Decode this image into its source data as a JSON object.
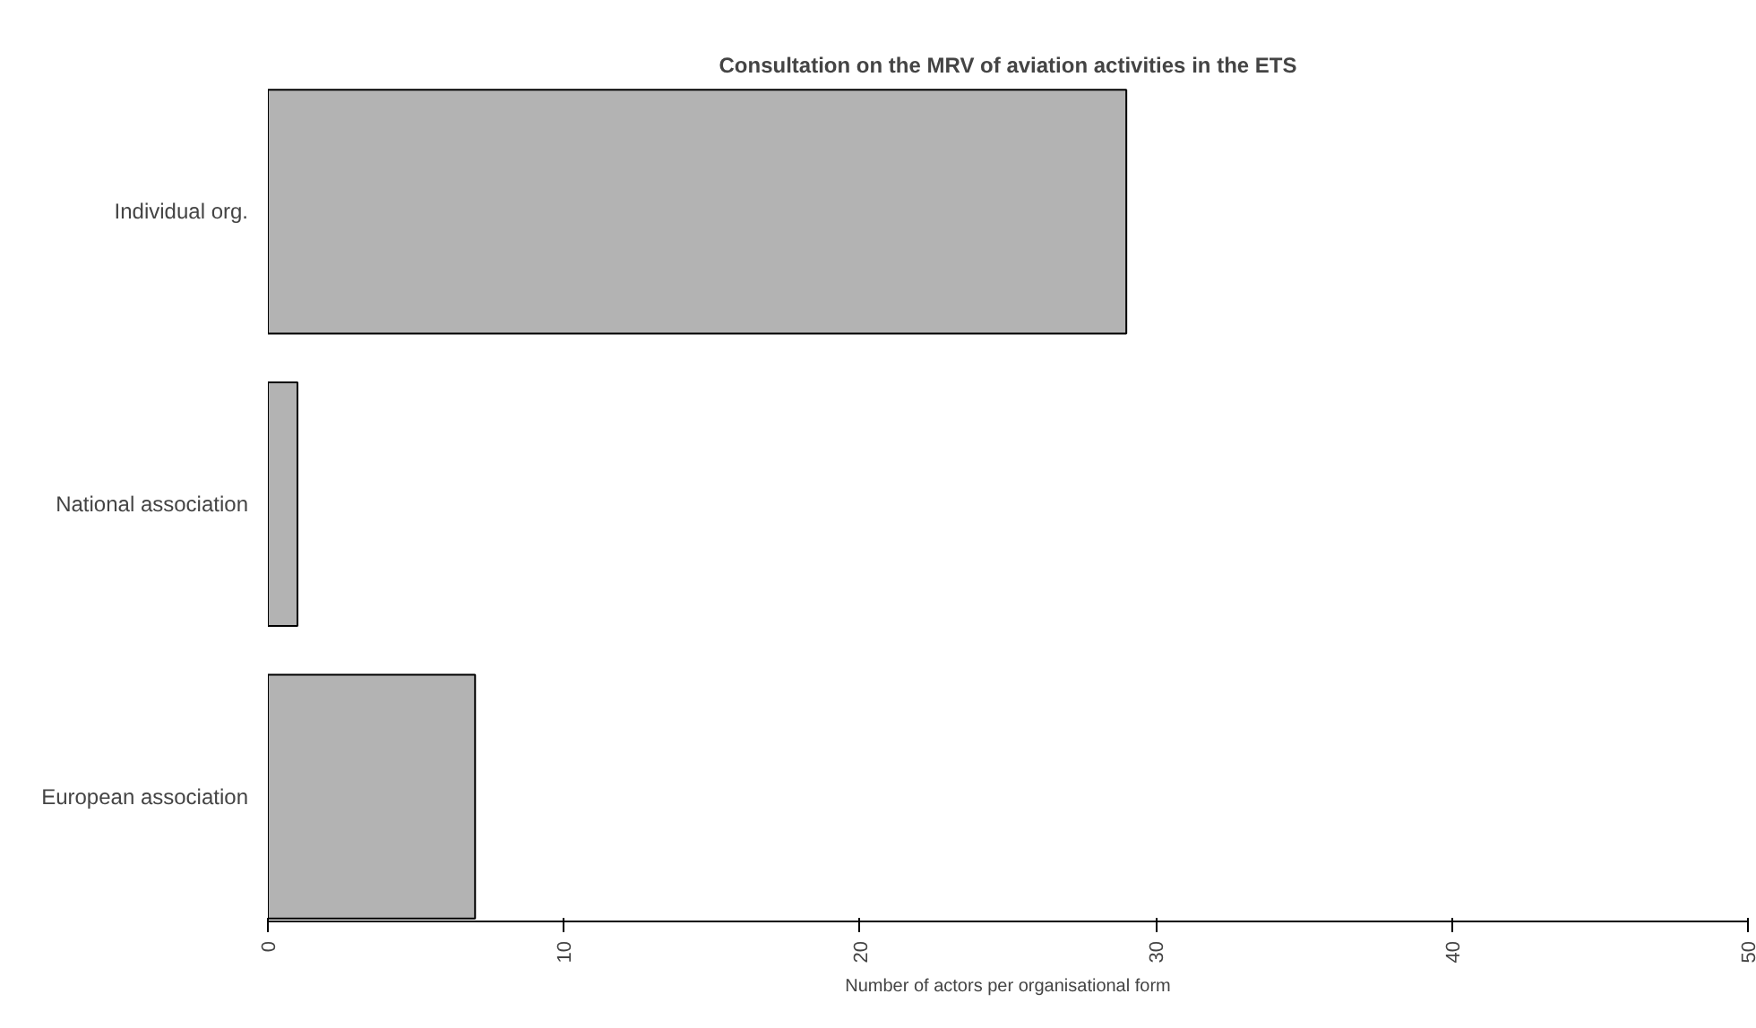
{
  "chart_data": {
    "type": "bar",
    "orientation": "horizontal",
    "title": "Consultation on the MRV of aviation activities in the ETS",
    "xlabel": "Number of actors per organisational form",
    "categories": [
      "Individual org.",
      "National association",
      "European association"
    ],
    "values": [
      29,
      1,
      7
    ],
    "color": "#b3b3b3",
    "xlim": [
      0,
      50
    ],
    "xticks": [
      0,
      10,
      20,
      30,
      40,
      50
    ],
    "grid": false
  }
}
